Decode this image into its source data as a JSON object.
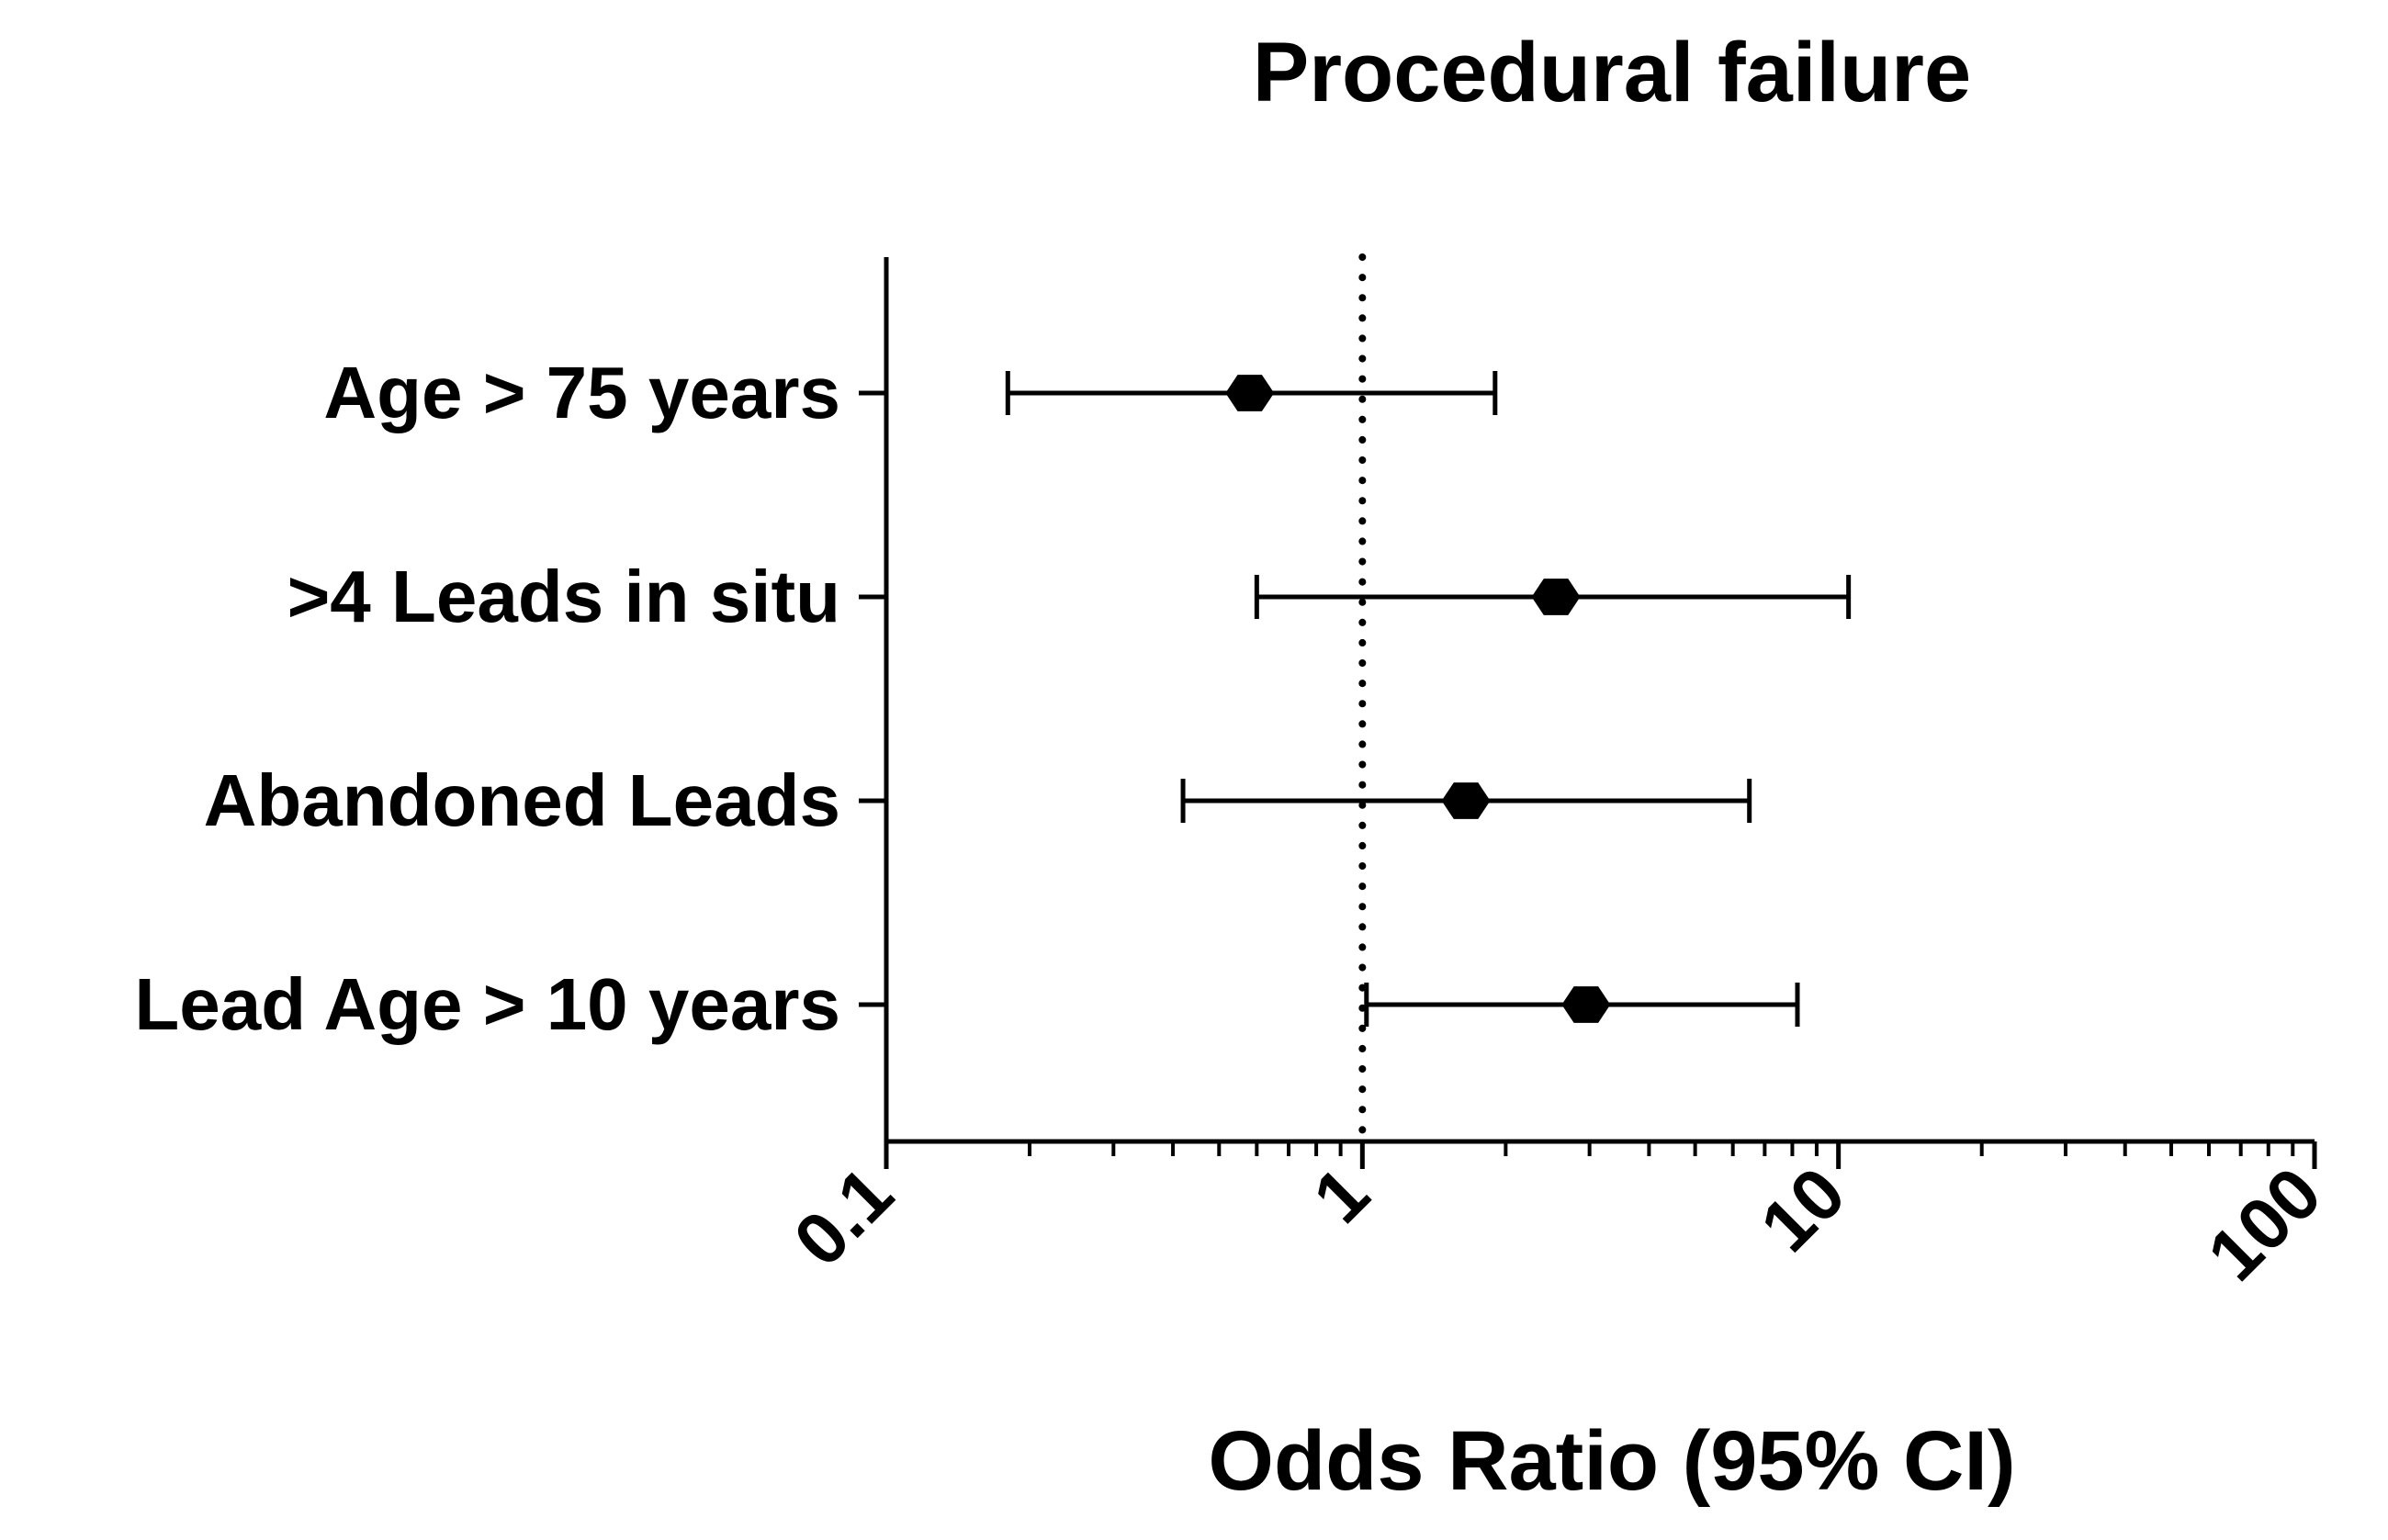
{
  "chart_data": {
    "type": "forest",
    "title": "Procedural failure",
    "xlabel": "Odds Ratio (95% CI)",
    "ylabel": "",
    "x_scale": "log",
    "xlim": [
      0.1,
      100
    ],
    "x_ticks": [
      {
        "value": 0.1,
        "label": "0.1"
      },
      {
        "value": 1,
        "label": "1"
      },
      {
        "value": 10,
        "label": "10"
      },
      {
        "value": 100,
        "label": "100"
      }
    ],
    "reference_line": 1,
    "categories": [
      "Age > 75 years",
      ">4 Leads in situ",
      "Abandoned Leads",
      "Lead Age > 10 years"
    ],
    "series": [
      {
        "estimates": [
          0.58,
          2.55,
          1.65,
          2.95
        ],
        "ci_lower": [
          0.18,
          0.6,
          0.42,
          1.02
        ],
        "ci_upper": [
          1.9,
          10.5,
          6.5,
          8.2
        ]
      }
    ],
    "grid": false,
    "colors": {
      "marker": "#000000",
      "axis": "#000000",
      "text": "#000000"
    }
  }
}
